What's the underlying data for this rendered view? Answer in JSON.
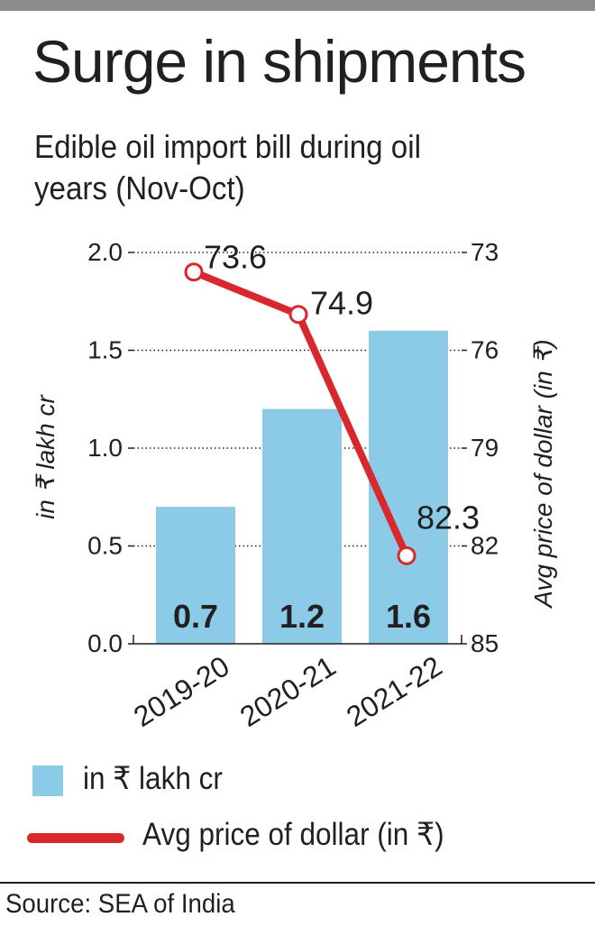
{
  "title": "Surge in shipments",
  "subtitle": "Edible oil import bill during oil years (Nov-Oct)",
  "source": "Source: SEA of India",
  "colors": {
    "bar": "#8ccbe8",
    "line": "#d9272e",
    "text": "#231f20",
    "topbar": "#8c8c8c"
  },
  "legend": {
    "bar_label": "in ₹ lakh cr",
    "line_label": "Avg price of dollar (in ₹)"
  },
  "chart_data": {
    "type": "bar",
    "categories": [
      "2019-20",
      "2020-21",
      "2021-22"
    ],
    "series": [
      {
        "name": "in ₹ lakh cr",
        "type": "bar",
        "axis": "left",
        "values": [
          0.7,
          1.2,
          1.6
        ],
        "display_labels": [
          "0.7",
          "1.2",
          "1.6"
        ]
      },
      {
        "name": "Avg price of dollar (in ₹)",
        "type": "line",
        "axis": "right",
        "values": [
          73.6,
          74.9,
          82.3
        ],
        "display_labels": [
          "73.6",
          "74.9",
          "82.3"
        ]
      }
    ],
    "ylabel": "in ₹ lakh cr",
    "y2label": "Avg price of dollar (in ₹)",
    "ylim": [
      0,
      2.0
    ],
    "yticks": [
      "0.0",
      "0.5",
      "1.0",
      "1.5",
      "2.0"
    ],
    "y2lim": [
      85,
      73
    ],
    "y2_inverted": true,
    "y2ticks": [
      "85",
      "82",
      "79",
      "76",
      "73"
    ],
    "grid": true,
    "legend_position": "bottom"
  }
}
